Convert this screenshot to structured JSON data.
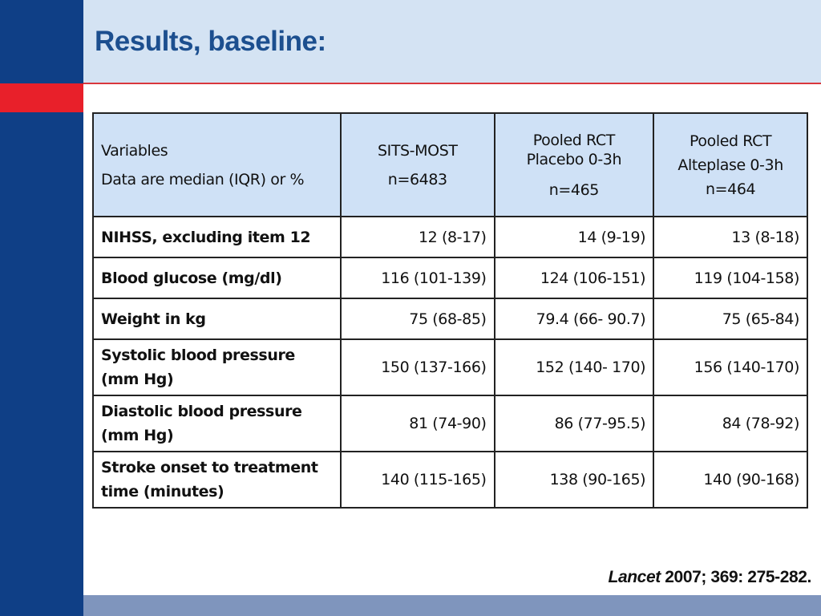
{
  "slide": {
    "title": "Results, baseline:",
    "citation": {
      "journal": "Lancet",
      "reference": " 2007; 369: 275-282."
    },
    "colors": {
      "side_bar": "#0f3f86",
      "accent_red": "#e8202a",
      "header_band": "#d4e3f3",
      "bottom_band": "#7f95bd",
      "table_header": "#cfe1f6"
    }
  },
  "table": {
    "headers": {
      "variables": {
        "line1": "Variables",
        "line2": "Data are median (IQR) or %"
      },
      "sits_most": {
        "line1": "SITS-MOST",
        "line2": "n=6483"
      },
      "placebo": {
        "line1": "Pooled RCT",
        "line2": "Placebo 0-3h",
        "line3": "n=465"
      },
      "alteplase": {
        "line1": "Pooled RCT",
        "line2": "Alteplase 0-3h",
        "line3": "n=464"
      }
    },
    "rows": [
      {
        "variable": "NIHSS, excluding  item 12",
        "sits_most": "12 (8-17)",
        "placebo": "14 (9-19)",
        "alteplase": "13 (8-18)"
      },
      {
        "variable": "Blood glucose (mg/dl)",
        "sits_most": "116 (101-139)",
        "placebo": "124 (106-151)",
        "alteplase": "119 (104-158)"
      },
      {
        "variable": "Weight in kg",
        "sits_most": "75 (68-85)",
        "placebo": "79.4 (66- 90.7)",
        "alteplase": "75 (65-84)"
      },
      {
        "variable": "Systolic blood pressure (mm Hg)",
        "sits_most": "150 (137-166)",
        "placebo": "152 (140- 170)",
        "alteplase": "156 (140-170)"
      },
      {
        "variable": "Diastolic blood pressure (mm Hg)",
        "sits_most": "81 (74-90)",
        "placebo": "86 (77-95.5)",
        "alteplase": "84 (78-92)"
      },
      {
        "variable": "Stroke onset to treatment time (minutes)",
        "sits_most": "140 (115-165)",
        "placebo": "138 (90-165)",
        "alteplase": "140 (90-168)"
      }
    ]
  }
}
